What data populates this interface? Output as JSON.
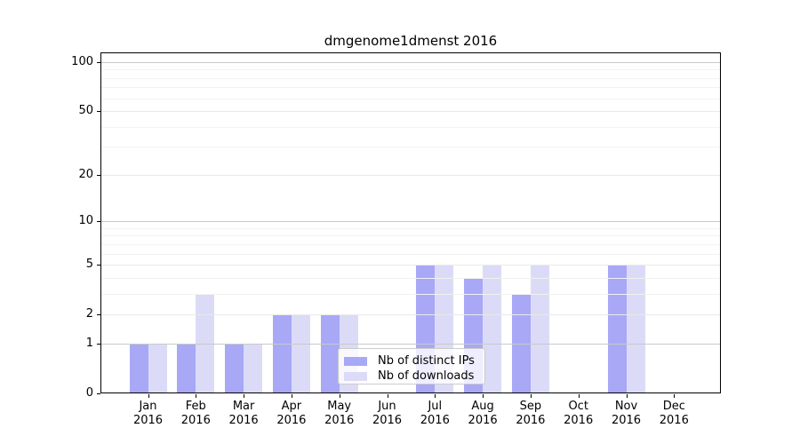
{
  "title": "dmgenome1dmenst 2016",
  "chart_data": {
    "type": "bar",
    "title": "dmgenome1dmenst 2016",
    "x_months": [
      "Jan",
      "Feb",
      "Mar",
      "Apr",
      "May",
      "Jun",
      "Jul",
      "Aug",
      "Sep",
      "Oct",
      "Nov",
      "Dec"
    ],
    "x_year": "2016",
    "series": [
      {
        "name": "Nb of distinct IPs",
        "color": "#a8a8f7",
        "values": [
          1,
          1,
          1,
          2,
          2,
          0,
          5,
          4,
          3,
          0,
          5,
          0
        ]
      },
      {
        "name": "Nb of downloads",
        "color": "#dbdbf8",
        "values": [
          1,
          3,
          1,
          2,
          2,
          0,
          5,
          5,
          5,
          0,
          5,
          0
        ]
      }
    ],
    "y_scale": "log10(1+x)",
    "y_tick_values": [
      0,
      1,
      2,
      5,
      10,
      20,
      50,
      100
    ],
    "y_tick_labels": [
      "0",
      "1",
      "2",
      "5",
      "10",
      "20",
      "50",
      "100"
    ],
    "y_power_gridlines": [
      1,
      10,
      100
    ],
    "y_light_gridlines": [
      2,
      5,
      20,
      50
    ],
    "y_minor_gridlines": [
      3,
      4,
      6,
      7,
      8,
      9,
      30,
      40,
      60,
      70,
      80,
      90
    ],
    "ylim": [
      0,
      113
    ],
    "grid": true,
    "legend_position": "lower center"
  },
  "legend": {
    "items": [
      {
        "label": "Nb of distinct IPs",
        "color": "#a8a8f7"
      },
      {
        "label": "Nb of downloads",
        "color": "#dbdbf8"
      }
    ]
  },
  "colors": {
    "background": "#ffffff",
    "spine": "#000000",
    "text": "#000000",
    "power_gridline": "#c9c9c9",
    "major_gridline": "#e9e9e9",
    "minor_gridline": "#f2f2f2"
  }
}
